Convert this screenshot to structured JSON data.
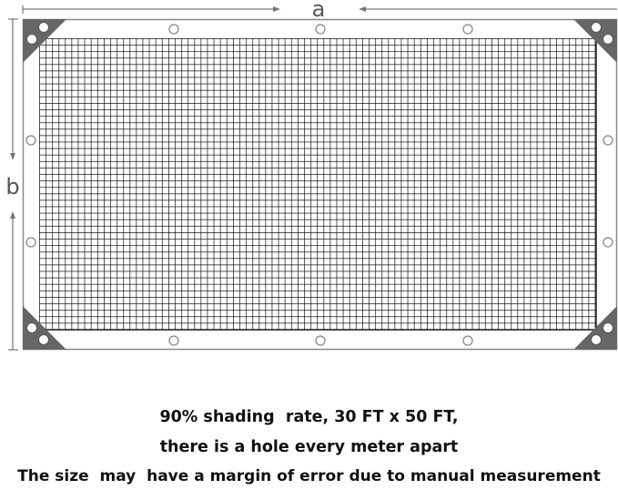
{
  "diagram": {
    "dimension_labels": {
      "width": "a",
      "height": "b"
    },
    "colors": {
      "frame": "#888888",
      "corner_patch": "#666666",
      "mesh": "#111111",
      "arrow": "#777777"
    }
  },
  "caption": {
    "lines": [
      "90% shading  rate, 30 FT x 50 FT,",
      "there is a hole every meter apart",
      "The size  may  have a margin of error due to manual measurement"
    ]
  }
}
